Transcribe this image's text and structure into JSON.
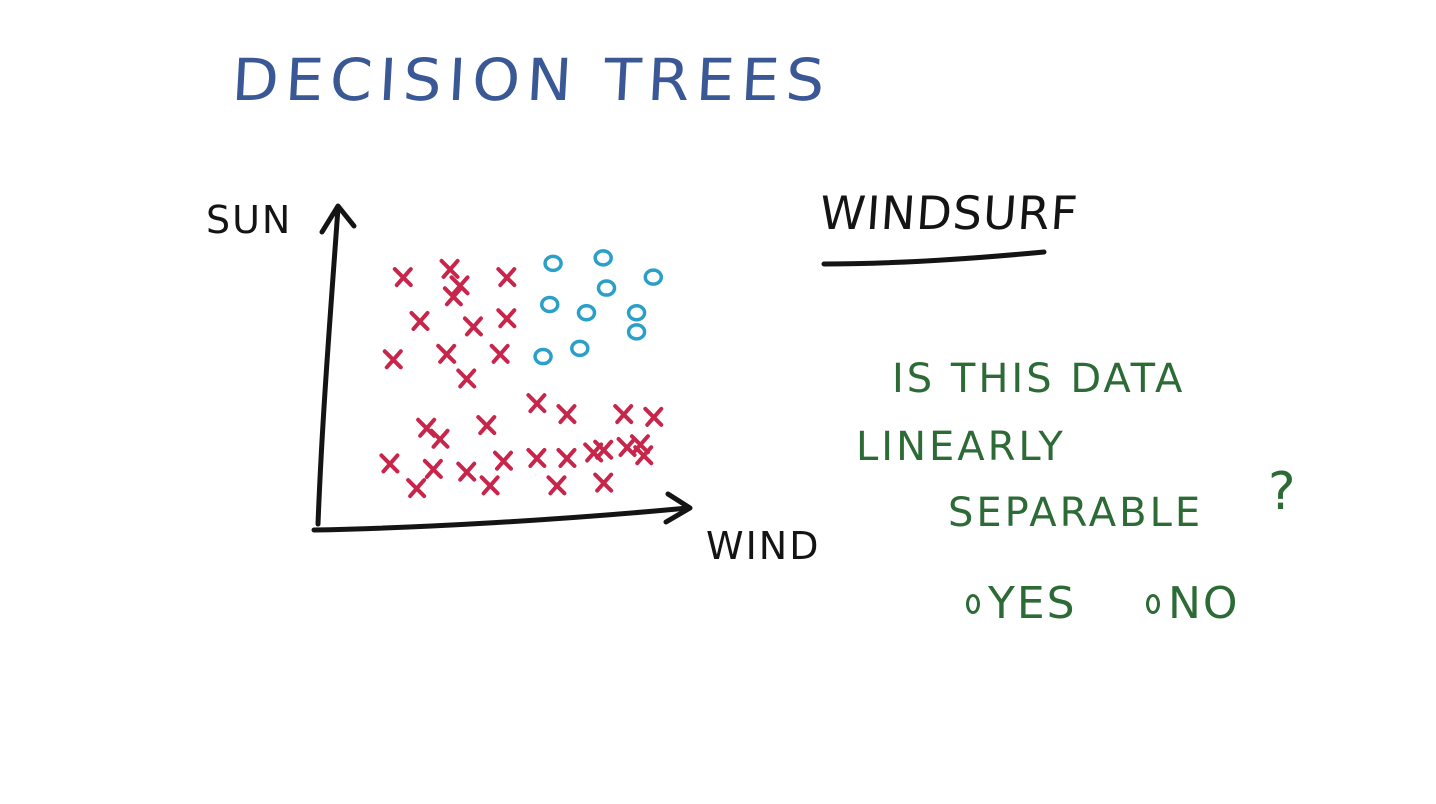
{
  "title": "DECISION TREES",
  "subject": "WINDSURF",
  "question": {
    "line1": "IS THIS DATA",
    "line2": "LINEARLY",
    "line3": "SEPARABLE",
    "mark": "?"
  },
  "options": [
    {
      "label": "YES"
    },
    {
      "label": "NO"
    }
  ],
  "colors": {
    "title": "#3a5796",
    "ink": "#141414",
    "question": "#2d6b36",
    "x_marker": "#c8254b",
    "o_marker": "#2aa0c8"
  },
  "chart_data": {
    "type": "scatter",
    "xlabel": "WIND",
    "ylabel": "SUN",
    "xlim": [
      0,
      100
    ],
    "ylim": [
      0,
      100
    ],
    "grid": false,
    "legend": "none",
    "series": [
      {
        "name": "x",
        "marker": "x",
        "points": [
          [
            17,
            85
          ],
          [
            31,
            88
          ],
          [
            34,
            82
          ],
          [
            48,
            85
          ],
          [
            32,
            78
          ],
          [
            22,
            69
          ],
          [
            38,
            67
          ],
          [
            48,
            70
          ],
          [
            14,
            55
          ],
          [
            30,
            57
          ],
          [
            46,
            57
          ],
          [
            36,
            48
          ],
          [
            57,
            39
          ],
          [
            66,
            35
          ],
          [
            83,
            35
          ],
          [
            92,
            34
          ],
          [
            24,
            30
          ],
          [
            42,
            31
          ],
          [
            28,
            26
          ],
          [
            84,
            23
          ],
          [
            13,
            17
          ],
          [
            36,
            14
          ],
          [
            47,
            18
          ],
          [
            57,
            19
          ],
          [
            66,
            19
          ],
          [
            74,
            21
          ],
          [
            89,
            20
          ],
          [
            77,
            22
          ],
          [
            88,
            24
          ],
          [
            21,
            8
          ],
          [
            43,
            9
          ],
          [
            63,
            9
          ],
          [
            77,
            10
          ],
          [
            26,
            15
          ]
        ]
      },
      {
        "name": "o",
        "marker": "o",
        "points": [
          [
            62,
            90
          ],
          [
            77,
            92
          ],
          [
            92,
            85
          ],
          [
            78,
            81
          ],
          [
            61,
            75
          ],
          [
            72,
            72
          ],
          [
            87,
            72
          ],
          [
            87,
            65
          ],
          [
            59,
            56
          ],
          [
            70,
            59
          ]
        ]
      }
    ]
  }
}
